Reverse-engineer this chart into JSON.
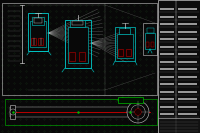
{
  "bg_color": "#080808",
  "dot_color": "#1a3a1a",
  "cyan": "#00cccc",
  "white": "#c8c8c8",
  "green": "#00bb00",
  "red": "#bb0000",
  "magenta": "#cc00cc",
  "gray": "#555555",
  "panel_bg": "#0d0d0d"
}
